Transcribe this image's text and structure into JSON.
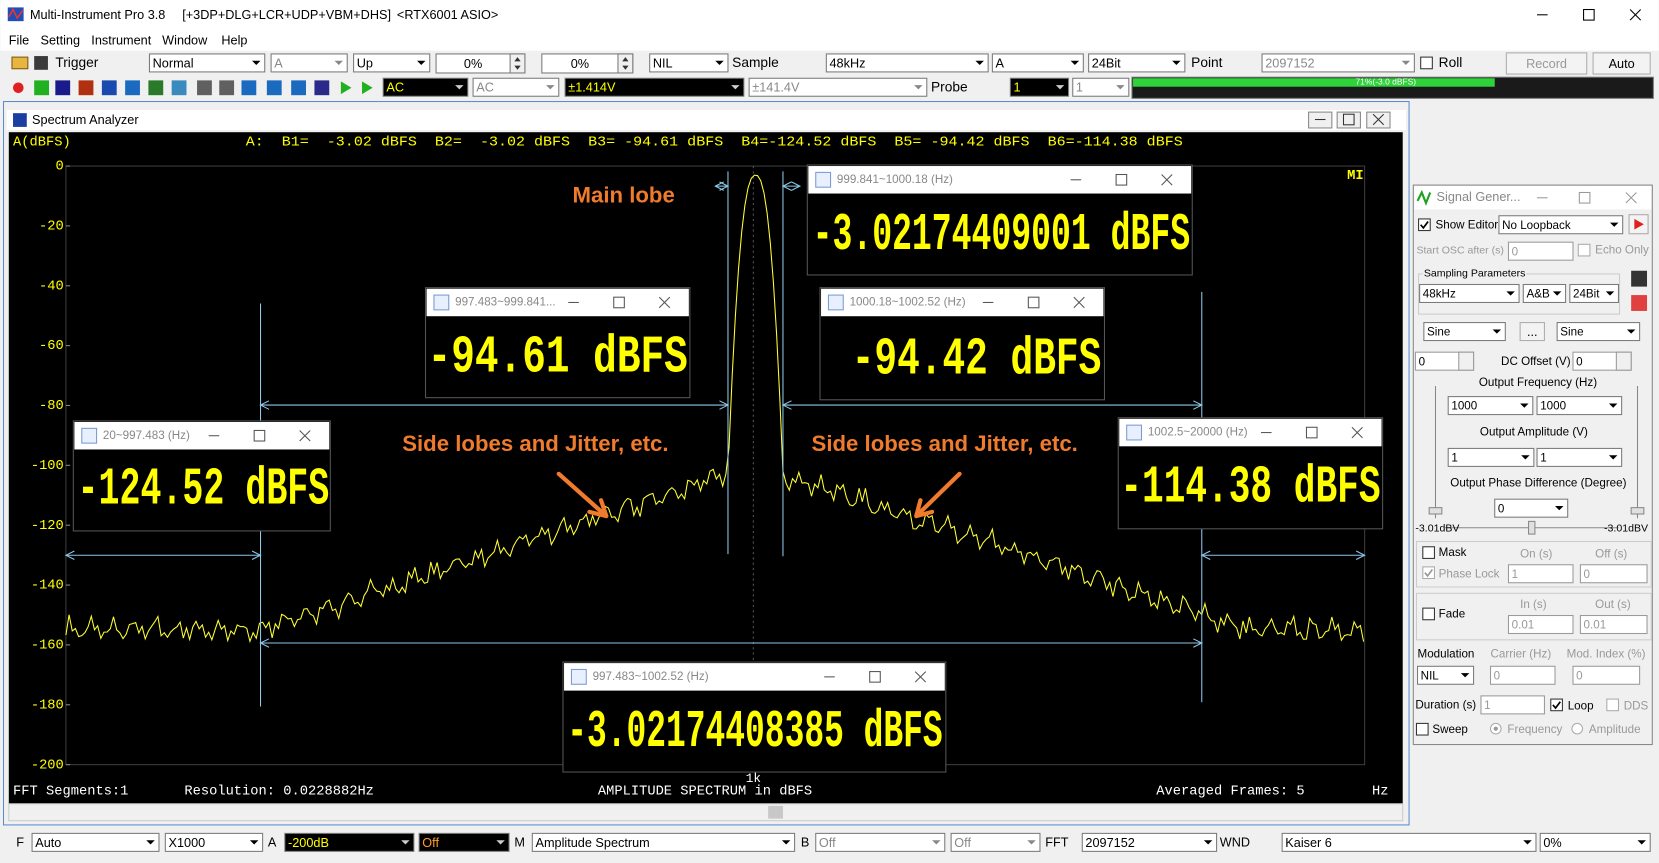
{
  "title_bar": {
    "app": "Multi-Instrument Pro 3.8",
    "modules": "[+3DP+DLG+LCR+UDP+VBM+DHS]",
    "device": "<RTX6001 ASIO>"
  },
  "menu": [
    "File",
    "Setting",
    "Instrument",
    "Window",
    "Help"
  ],
  "toolbar1": {
    "trigger": "Trigger",
    "trigger_mode": "Normal",
    "trigger_channel": "A",
    "edge": "Up",
    "level": "0%",
    "pretrigger": "0%",
    "nil": "NIL",
    "sample_label": "Sample",
    "sample_rate": "48kHz",
    "channel": "A",
    "bit_depth": "24Bit",
    "point_label": "Point",
    "points": "2097152",
    "roll": "Roll",
    "record": "Record",
    "auto": "Auto"
  },
  "toolbar2": {
    "coupling_a": "AC",
    "coupling_b": "AC",
    "range_a": "±1.414V",
    "range_b": "±141.4V",
    "probe_label": "Probe",
    "probe_a": "1",
    "probe_b": "1",
    "level_meter": "71%(-3.0 dBFS)"
  },
  "spectrum": {
    "title": "Spectrum Analyzer",
    "y_unit": "A(dBFS)",
    "readout": "A:  B1=  -3.02 dBFS  B2=  -3.02 dBFS  B3= -94.61 dBFS  B4=-124.52 dBFS  B5= -94.42 dBFS  B6=-114.38 dBFS",
    "yticks": [
      "0",
      "-20",
      "-40",
      "-60",
      "-80",
      "-100",
      "-120",
      "-140",
      "-160",
      "-180",
      "-200"
    ],
    "logo": "MI",
    "footer": {
      "segments": "FFT Segments:1",
      "resolution": "Resolution: 0.0228882Hz",
      "mode": "AMPLITUDE SPECTRUM in dBFS",
      "center_tick": "1k",
      "frames": "Averaged Frames: 5",
      "x_unit": "Hz"
    }
  },
  "annotations": {
    "main_lobe": "Main lobe",
    "side_left": "Side lobes and Jitter, etc.",
    "side_right": "Side lobes and Jitter, etc."
  },
  "popups": [
    {
      "title": "999.841~1000.18 (Hz)",
      "value": "-3.02174409001 dBFS"
    },
    {
      "title": "997.483~999.841...",
      "value": "-94.61 dBFS"
    },
    {
      "title": "1000.18~1002.52 (Hz)",
      "value": "-94.42 dBFS"
    },
    {
      "title": "20~997.483 (Hz)",
      "value": "-124.52 dBFS"
    },
    {
      "title": "1002.5~20000 (Hz)",
      "value": "-114.38 dBFS"
    },
    {
      "title": "997.483~1002.52 (Hz)",
      "value": "-3.02174408385 dBFS"
    }
  ],
  "signal_generator": {
    "title": "Signal Gener...",
    "show_editor": "Show Editor",
    "loopback": "No Loopback",
    "start_osc": "Start OSC after (s)",
    "start_osc_value": "0",
    "echo_only": "Echo Only",
    "sampling_parameters": "Sampling Parameters",
    "sample_rate": "48kHz",
    "channels": "A&B",
    "bit_depth": "24Bit",
    "wave_a": "Sine",
    "wave_more": "...",
    "wave_b": "Sine",
    "dc_a": "0",
    "dc_label": "DC Offset (V)",
    "dc_b": "0",
    "freq_label": "Output Frequency (Hz)",
    "freq_a": "1000",
    "freq_b": "1000",
    "amp_label": "Output Amplitude (V)",
    "amp_a": "1",
    "amp_b": "1",
    "phase_label": "Output Phase Difference (Degree)",
    "phase": "0",
    "level_a": "-3.01dBV",
    "level_b": "-3.01dBV",
    "mask": "Mask",
    "on": "On (s)",
    "off": "Off (s)",
    "phase_lock": "Phase Lock",
    "on_value": "1",
    "off_value": "0",
    "fade": "Fade",
    "fade_in": "In (s)",
    "fade_out": "Out (s)",
    "fade_in_value": "0.01",
    "fade_out_value": "0.01",
    "modulation": "Modulation",
    "carrier": "Carrier (Hz)",
    "mod_index": "Mod. Index (%)",
    "modulation_value": "NIL",
    "carrier_value": "0",
    "mod_index_value": "0",
    "duration": "Duration (s)",
    "duration_value": "1",
    "loop": "Loop",
    "dds": "DDS",
    "sweep": "Sweep",
    "sweep_frequency": "Frequency",
    "sweep_amplitude": "Amplitude"
  },
  "bottom_bar": {
    "f": "F",
    "f_mode": "Auto",
    "zoom": "X1000",
    "a": "A",
    "a_range": "-200dB",
    "a_off": "Off",
    "m": "M",
    "m_mode": "Amplitude Spectrum",
    "b": "B",
    "b_range": "Off",
    "b_off": "Off",
    "fft": "FFT",
    "fft_size": "2097152",
    "wnd": "WND",
    "window": "Kaiser 6",
    "overlap": "0%"
  }
}
